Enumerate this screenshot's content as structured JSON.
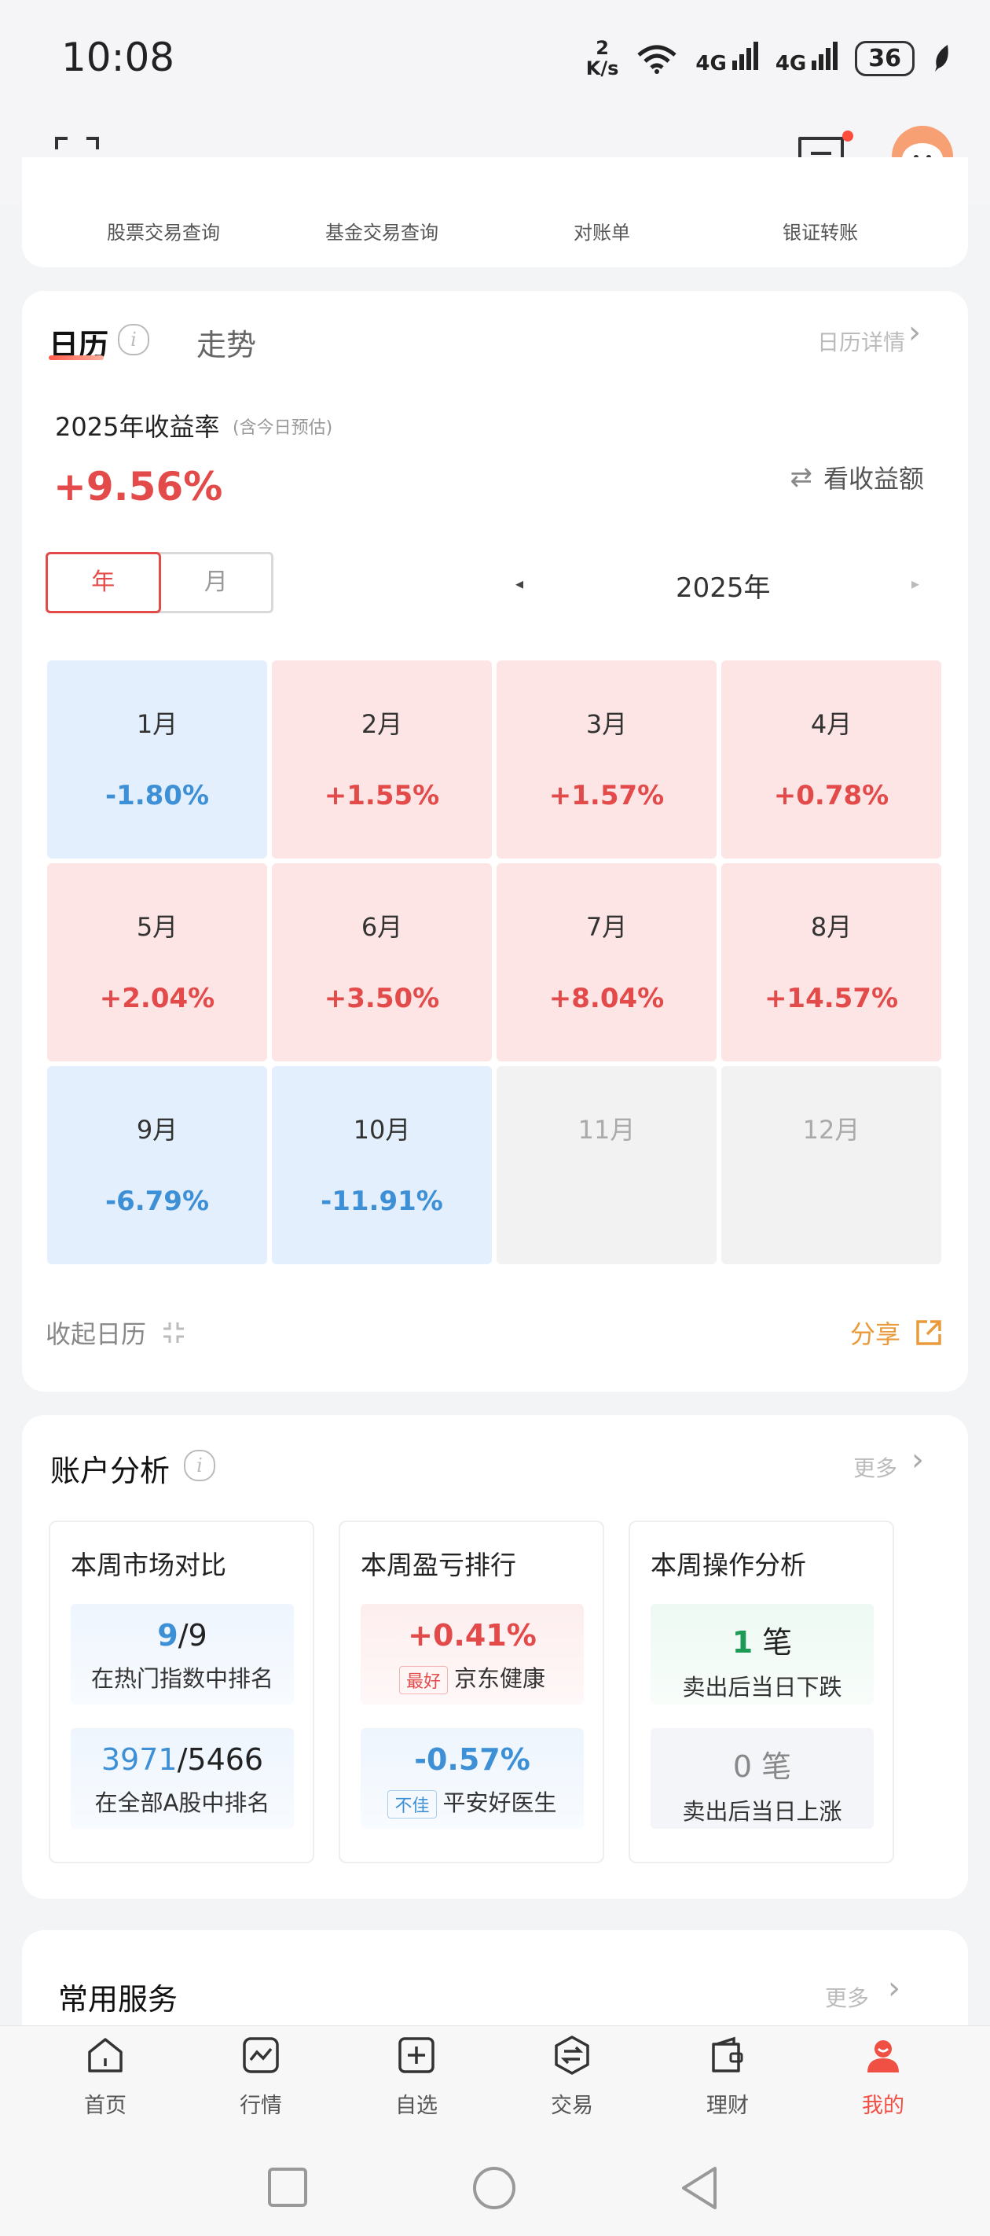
{
  "status": {
    "time": "10:08",
    "speed_top": "2",
    "speed_unit": "K/s",
    "net1": "4G",
    "net2": "4G",
    "battery": "36"
  },
  "quick_links": [
    "股票交易查询",
    "基金交易查询",
    "对账单",
    "银证转账"
  ],
  "calendar": {
    "tab_calendar": "日历",
    "tab_trend": "走势",
    "detail_link": "日历详情",
    "year_label": "2025年收益率",
    "year_note": "(含今日预估)",
    "year_pct": "+9.56%",
    "toggle_amount": "看收益额",
    "seg_year": "年",
    "seg_month": "月",
    "prev_icon": "◂",
    "year": "2025年",
    "next_icon": "▸",
    "months": [
      {
        "m": "1月",
        "p": "-1.80%",
        "t": "dn"
      },
      {
        "m": "2月",
        "p": "+1.55%",
        "t": "up"
      },
      {
        "m": "3月",
        "p": "+1.57%",
        "t": "up"
      },
      {
        "m": "4月",
        "p": "+0.78%",
        "t": "up"
      },
      {
        "m": "5月",
        "p": "+2.04%",
        "t": "up"
      },
      {
        "m": "6月",
        "p": "+3.50%",
        "t": "up"
      },
      {
        "m": "7月",
        "p": "+8.04%",
        "t": "up"
      },
      {
        "m": "8月",
        "p": "+14.57%",
        "t": "up"
      },
      {
        "m": "9月",
        "p": "-6.79%",
        "t": "dn"
      },
      {
        "m": "10月",
        "p": "-11.91%",
        "t": "dn"
      },
      {
        "m": "11月",
        "p": "",
        "t": "na"
      },
      {
        "m": "12月",
        "p": "",
        "t": "na"
      }
    ],
    "collapse": "收起日历",
    "share": "分享"
  },
  "account": {
    "title": "账户分析",
    "more": "更多",
    "market": {
      "title": "本周市场对比",
      "rank1_value": "9",
      "rank1_total": "/9",
      "rank1_desc": "在热门指数中排名",
      "rank2_value": "3971",
      "rank2_total": "/5466",
      "rank2_desc": "在全部A股中排名"
    },
    "pnl": {
      "title": "本周盈亏排行",
      "best_value": "+0.41%",
      "best_tag": "最好",
      "best_name": "京东健康",
      "worst_value": "-0.57%",
      "worst_tag": "不佳",
      "worst_name": "平安好医生"
    },
    "ops": {
      "title": "本周操作分析",
      "op1_count": "1",
      "op1_unit": " 笔",
      "op1_desc": "卖出后当日下跌",
      "op2_count": "0",
      "op2_unit": " 笔",
      "op2_desc": "卖出后当日上涨"
    }
  },
  "services": {
    "title": "常用服务",
    "more": "更多"
  },
  "nav": [
    {
      "label": "首页",
      "icon": "home-icon"
    },
    {
      "label": "行情",
      "icon": "chart-icon"
    },
    {
      "label": "自选",
      "icon": "plus-square-icon"
    },
    {
      "label": "交易",
      "icon": "exchange-icon"
    },
    {
      "label": "理财",
      "icon": "wallet-icon"
    },
    {
      "label": "我的",
      "icon": "profile-icon"
    }
  ],
  "colors": {
    "up": "#e34a4a",
    "down": "#3d8fd6",
    "active_nav": "#f04f43",
    "share": "#e89a3c"
  }
}
